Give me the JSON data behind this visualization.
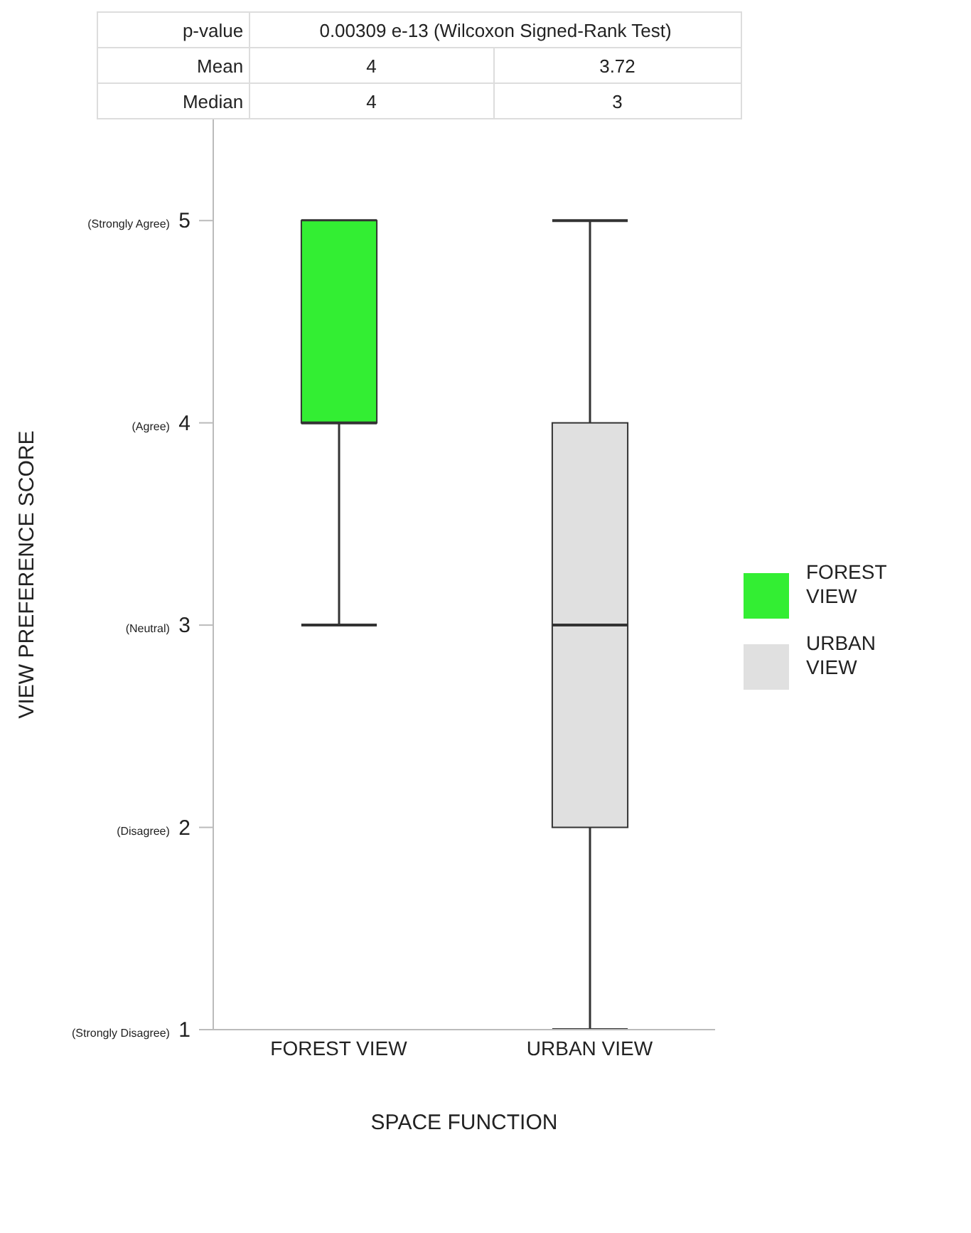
{
  "chart_data": {
    "type": "box",
    "xlabel": "SPACE FUNCTION",
    "ylabel": "VIEW PREFERENCE SCORE",
    "categories": [
      "FOREST VIEW",
      "URBAN VIEW"
    ],
    "series": [
      {
        "name": "FOREST VIEW",
        "color": "#33ee33",
        "boxes": [
          {
            "low": 3,
            "q1": 4,
            "median": 4,
            "q3": 5,
            "high": 5
          },
          null
        ]
      },
      {
        "name": "URBAN VIEW",
        "color": "#e0e0e0",
        "boxes": [
          null,
          {
            "low": 1,
            "q1": 2,
            "median": 3,
            "q3": 4,
            "high": 5
          }
        ]
      }
    ],
    "ylim": [
      1,
      5.5
    ],
    "yticks": [
      {
        "value": 1,
        "label": "(Strongly Disagree) 1"
      },
      {
        "value": 2,
        "label": "(Disagree) 2"
      },
      {
        "value": 3,
        "label": "(Neutral) 3"
      },
      {
        "value": 4,
        "label": "(Agree) 4"
      },
      {
        "value": 5,
        "label": "(Strongly Agree) 5"
      }
    ],
    "legend": "right",
    "annotations": [
      "p-value",
      "0.00309 e-13 (Wilcoxon Signed-Rank Test)",
      "Mean",
      "4",
      "3.72",
      "Median",
      "4",
      "3"
    ]
  }
}
